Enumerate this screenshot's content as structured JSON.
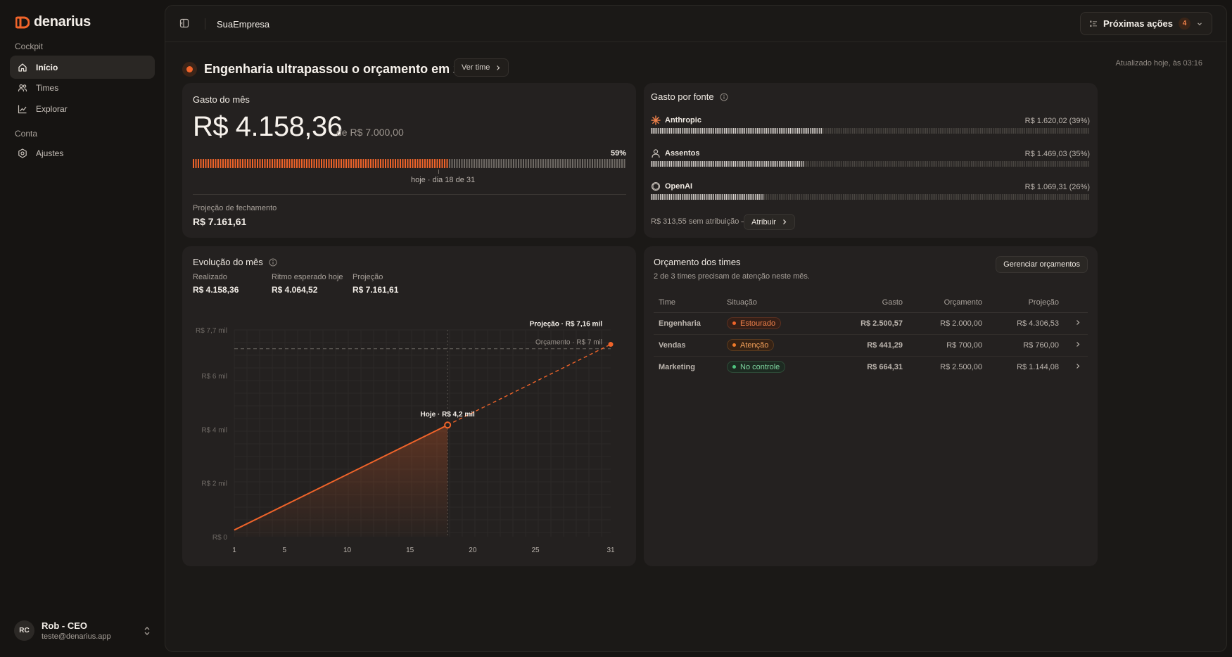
{
  "app": {
    "name": "denarius"
  },
  "sidebar": {
    "section_cockpit": "Cockpit",
    "section_conta": "Conta",
    "items": [
      {
        "label": "Início",
        "icon": "home-icon",
        "active": true
      },
      {
        "label": "Times",
        "icon": "users-icon",
        "active": false
      },
      {
        "label": "Explorar",
        "icon": "chart-line-icon",
        "active": false
      },
      {
        "label": "Ajustes",
        "icon": "gear-icon",
        "active": false
      }
    ],
    "user": {
      "initials": "RC",
      "name": "Rob - CEO",
      "email": "teste@denarius.app"
    }
  },
  "header": {
    "company": "SuaEmpresa",
    "actions_label": "Próximas ações",
    "actions_count": "4"
  },
  "alert": {
    "text": "Engenharia ultrapassou o orçamento em 25%.",
    "button": "Ver time",
    "updated": "Atualizado hoje, às 03:16"
  },
  "spend": {
    "title": "Gasto do mês",
    "amount": "R$ 4.158,36",
    "of_budget": "de R$ 7.000,00",
    "percent_label": "59%",
    "percent": 0.59,
    "today_label": "hoje · dia 18 de 31",
    "projection_label": "Projeção de fechamento",
    "projection_value": "R$ 7.161,61"
  },
  "sources": {
    "title": "Gasto por fonte",
    "items": [
      {
        "name": "Anthropic",
        "icon": "anthropic-icon",
        "value": "R$ 1.620,02 (39%)",
        "share": 0.39
      },
      {
        "name": "Assentos",
        "icon": "user-icon",
        "value": "R$ 1.469,03 (35%)",
        "share": 0.35
      },
      {
        "name": "OpenAI",
        "icon": "openai-icon",
        "value": "R$ 1.069,31 (26%)",
        "share": 0.26
      }
    ],
    "unassigned": "R$ 313,55 sem atribuição —",
    "assign_button": "Atribuir"
  },
  "evolution": {
    "title": "Evolução do mês",
    "kpis": [
      {
        "label": "Realizado",
        "value": "R$ 4.158,36"
      },
      {
        "label": "Ritmo esperado hoje",
        "value": "R$ 4.064,52"
      },
      {
        "label": "Projeção",
        "value": "R$ 7.161,61"
      }
    ]
  },
  "chart_data": {
    "type": "line",
    "x": [
      1,
      18,
      31
    ],
    "xticks": [
      "1",
      "5",
      "10",
      "15",
      "20",
      "25",
      "31"
    ],
    "xtick_values": [
      1,
      5,
      10,
      15,
      20,
      25,
      31
    ],
    "yticks": [
      "R$ 0",
      "R$ 2 mil",
      "R$ 4 mil",
      "R$ 6 mil",
      "R$ 7,7 mil"
    ],
    "ytick_values": [
      0,
      2000,
      4000,
      6000,
      7700
    ],
    "ylim": [
      0,
      7700
    ],
    "xlim": [
      1,
      31
    ],
    "series": [
      {
        "name": "",
        "points": [
          [
            1,
            250
          ],
          [
            18,
            4158.36
          ]
        ],
        "style": "solid"
      },
      {
        "name": "",
        "points": [
          [
            18,
            4158.36
          ],
          [
            31,
            7161.61
          ]
        ],
        "style": "dashed"
      }
    ],
    "budget": 7000,
    "today": 18,
    "annotations": {
      "today": "Hoje · R$ 4,2 mil",
      "projection": "Projeção · R$ 7,16 mil",
      "budget": "Orçamento · R$ 7 mil"
    },
    "color": "#f0642a"
  },
  "teams": {
    "title": "Orçamento dos times",
    "subtitle": "2 de 3 times precisam de atenção neste mês.",
    "manage_button": "Gerenciar orçamentos",
    "columns": [
      "Time",
      "Situação",
      "Gasto",
      "Orçamento",
      "Projeção"
    ],
    "rows": [
      {
        "team": "Engenharia",
        "status": "Estourado",
        "spent": "R$ 2.500,57",
        "budget": "R$ 2.000,00",
        "projection": "R$ 4.306,53"
      },
      {
        "team": "Vendas",
        "status": "Atenção",
        "spent": "R$ 441,29",
        "budget": "R$ 700,00",
        "projection": "R$ 760,00"
      },
      {
        "team": "Marketing",
        "status": "No controle",
        "spent": "R$ 664,31",
        "budget": "R$ 2.500,00",
        "projection": "R$ 1.144,08"
      }
    ]
  },
  "colors": {
    "accent": "#f0642a",
    "danger": "#f0814a",
    "warning": "#f2a05a",
    "success": "#4fc47f"
  }
}
